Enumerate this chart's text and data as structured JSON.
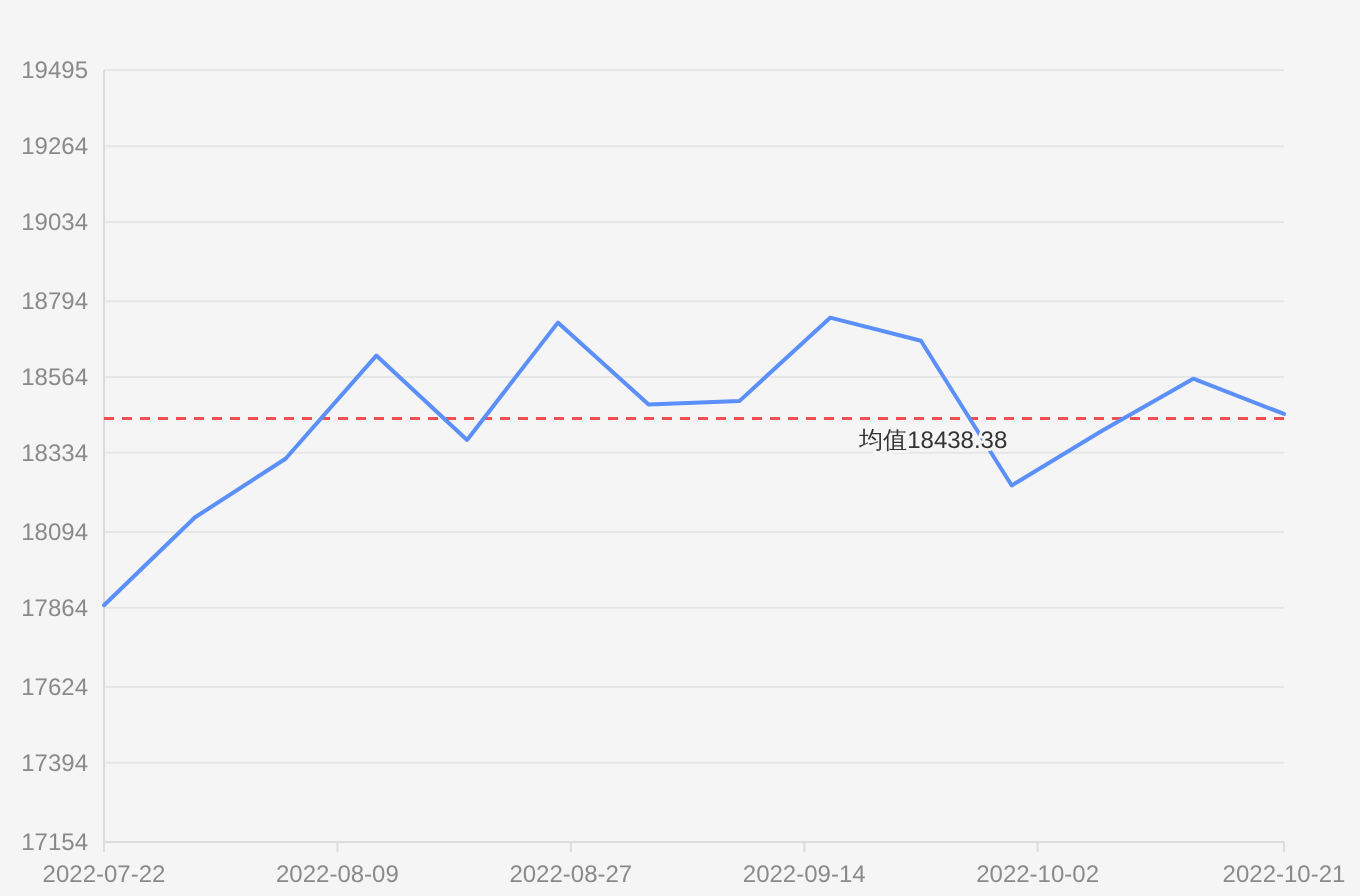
{
  "chart_data": {
    "type": "line",
    "x": [
      "2022-07-22",
      "2022-07-29",
      "2022-08-05",
      "2022-08-12",
      "2022-08-19",
      "2022-08-26",
      "2022-09-02",
      "2022-09-09",
      "2022-09-16",
      "2022-09-23",
      "2022-09-30",
      "2022-10-07",
      "2022-10-14",
      "2022-10-21"
    ],
    "series": [
      {
        "color": "#5b8ff9",
        "values": [
          17872,
          18138,
          18316,
          18629,
          18373,
          18729,
          18481,
          18491,
          18744,
          18674,
          18235,
          18402,
          18559,
          18452
        ]
      }
    ],
    "xlim": [
      "2022-07-22",
      "2022-10-21"
    ],
    "xticks": [
      "2022-07-22",
      "2022-08-09",
      "2022-08-27",
      "2022-09-14",
      "2022-10-02",
      "2022-10-21"
    ],
    "ylim": [
      17154,
      19495
    ],
    "yticks": [
      17154,
      17394,
      17624,
      17864,
      18094,
      18334,
      18564,
      18794,
      19034,
      19264,
      19495
    ],
    "grid": "y",
    "marker": "none",
    "line_style": "solid",
    "ref_lines": [
      {
        "axis": "y",
        "value": 18438.38,
        "label": "均值18438.38",
        "color": "#f05050",
        "line_style": "dashed"
      }
    ]
  }
}
